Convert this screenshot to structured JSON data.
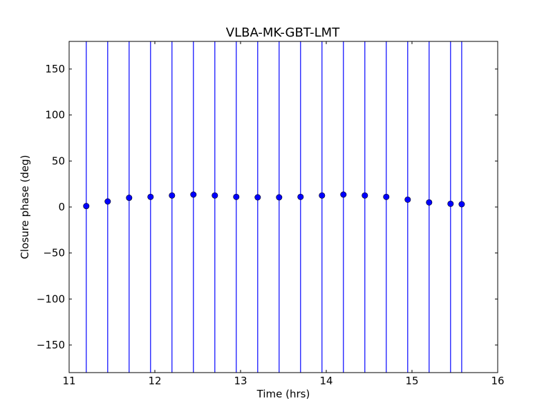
{
  "chart_data": {
    "type": "scatter",
    "title": "VLBA-MK-GBT-LMT",
    "xlabel": "Time (hrs)",
    "ylabel": "Closure phase (deg)",
    "xlim": [
      11,
      16
    ],
    "ylim": [
      -180,
      180
    ],
    "xticks": [
      11,
      12,
      13,
      14,
      15,
      16
    ],
    "xtick_labels": [
      "11",
      "12",
      "13",
      "14",
      "15",
      "16"
    ],
    "yticks": [
      150,
      100,
      50,
      0,
      -50,
      -100,
      -150
    ],
    "ytick_labels": [
      "150",
      "100",
      "50",
      "0",
      "−50",
      "−100",
      "−150"
    ],
    "grid": false,
    "marker_color": "#0000ff",
    "errorbar_color": "#0000ff",
    "series": [
      {
        "x": [
          11.2,
          11.45,
          11.7,
          11.95,
          12.2,
          12.45,
          12.7,
          12.95,
          13.2,
          13.45,
          13.7,
          13.95,
          14.2,
          14.45,
          14.7,
          14.95,
          15.2,
          15.45,
          15.58
        ],
        "y": [
          1,
          6,
          10,
          11,
          12.5,
          13.5,
          12.5,
          11,
          10.5,
          10.5,
          11,
          12.5,
          13.5,
          12.5,
          11,
          8,
          5,
          3.5,
          3
        ],
        "yerr_extends_full_range": true
      }
    ]
  }
}
